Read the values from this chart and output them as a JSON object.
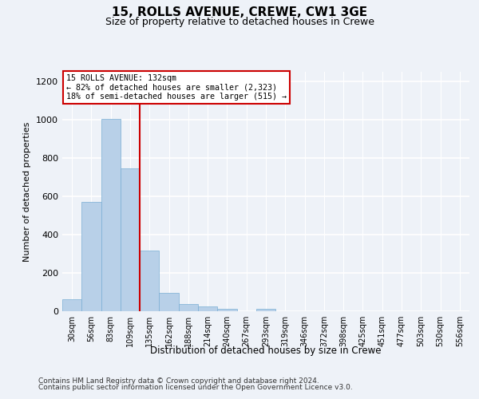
{
  "title_line1": "15, ROLLS AVENUE, CREWE, CW1 3GE",
  "title_line2": "Size of property relative to detached houses in Crewe",
  "xlabel": "Distribution of detached houses by size in Crewe",
  "ylabel": "Number of detached properties",
  "categories": [
    "30sqm",
    "56sqm",
    "83sqm",
    "109sqm",
    "135sqm",
    "162sqm",
    "188sqm",
    "214sqm",
    "240sqm",
    "267sqm",
    "293sqm",
    "319sqm",
    "346sqm",
    "372sqm",
    "398sqm",
    "425sqm",
    "451sqm",
    "477sqm",
    "503sqm",
    "530sqm",
    "556sqm"
  ],
  "values": [
    62,
    571,
    1005,
    745,
    315,
    97,
    37,
    25,
    14,
    0,
    14,
    0,
    0,
    0,
    0,
    0,
    0,
    0,
    0,
    0,
    0
  ],
  "bar_color": "#b8d0e8",
  "bar_edge_color": "#7aafd4",
  "annotation_box_text": "15 ROLLS AVENUE: 132sqm\n← 82% of detached houses are smaller (2,323)\n18% of semi-detached houses are larger (515) →",
  "footer_line1": "Contains HM Land Registry data © Crown copyright and database right 2024.",
  "footer_line2": "Contains public sector information licensed under the Open Government Licence v3.0.",
  "ylim": [
    0,
    1250
  ],
  "yticks": [
    0,
    200,
    400,
    600,
    800,
    1000,
    1200
  ],
  "bg_color": "#eef2f8",
  "plot_bg_color": "#eef2f8",
  "grid_color": "#ffffff",
  "red_line_color": "#cc0000",
  "box_edge_color": "#cc0000",
  "red_line_x": 3.5
}
